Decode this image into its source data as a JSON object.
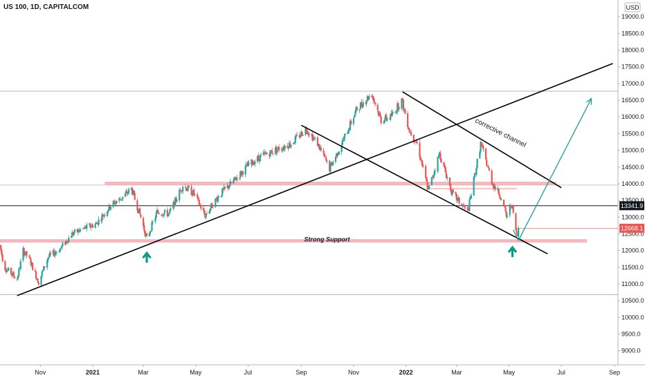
{
  "header": {
    "title": "US 100, 1D, CAPITALCOM",
    "currency": "USD"
  },
  "colors": {
    "up": "#26a69a",
    "down": "#ef5350",
    "zone": "#f7a9b1",
    "trendline": "#000000",
    "arrow_up": "#089981",
    "projection": "#26a69a"
  },
  "chart_data": {
    "type": "candlestick",
    "title": "US 100, 1D, CAPITALCOM",
    "y_axis": {
      "ylim": [
        8580,
        19500
      ],
      "ticks": [
        9000,
        9500,
        10000,
        10500,
        11000,
        11500,
        12000,
        12500,
        13000,
        13500,
        14000,
        14500,
        15000,
        15500,
        16000,
        16500,
        17000,
        17500,
        18000,
        18500,
        19000
      ],
      "tick_labels": [
        "9000.0",
        "9500.0",
        "10000.0",
        "10500.0",
        "11000.0",
        "11500.0",
        "12000.0",
        "12500.0",
        "13000.0",
        "13500.0",
        "14000.0",
        "14500.0",
        "15000.0",
        "15500.0",
        "16000.0",
        "16500.0",
        "17000.0",
        "17500.0",
        "18000.0",
        "18500.0",
        "19000.0"
      ],
      "scale": "linear",
      "side": "right"
    },
    "x_axis": {
      "xlim": [
        "2020-09-15",
        "2022-09-05"
      ],
      "ticks": [
        {
          "date": "2020-11-01",
          "label": "Nov",
          "bold": false
        },
        {
          "date": "2021-01-01",
          "label": "2021",
          "bold": true
        },
        {
          "date": "2021-03-01",
          "label": "Mar",
          "bold": false
        },
        {
          "date": "2021-05-01",
          "label": "May",
          "bold": false
        },
        {
          "date": "2021-07-01",
          "label": "Jul",
          "bold": false
        },
        {
          "date": "2021-09-01",
          "label": "Sep",
          "bold": false
        },
        {
          "date": "2021-11-01",
          "label": "Nov",
          "bold": false
        },
        {
          "date": "2022-01-01",
          "label": "2022",
          "bold": true
        },
        {
          "date": "2022-03-01",
          "label": "Mar",
          "bold": false
        },
        {
          "date": "2022-05-01",
          "label": "May",
          "bold": false
        },
        {
          "date": "2022-07-01",
          "label": "Jul",
          "bold": false
        },
        {
          "date": "2022-09-01",
          "label": "Sep",
          "bold": false
        }
      ]
    },
    "grid": false,
    "price_anchors": [
      [
        "2020-09-15",
        12150
      ],
      [
        "2020-09-20",
        11500
      ],
      [
        "2020-10-05",
        11150
      ],
      [
        "2020-10-12",
        12000
      ],
      [
        "2020-10-20",
        11700
      ],
      [
        "2020-10-30",
        11050
      ],
      [
        "2020-11-10",
        11800
      ],
      [
        "2020-11-24",
        12050
      ],
      [
        "2020-12-08",
        12500
      ],
      [
        "2020-12-21",
        12650
      ],
      [
        "2021-01-05",
        12800
      ],
      [
        "2021-01-22",
        13350
      ],
      [
        "2021-02-05",
        13600
      ],
      [
        "2021-02-15",
        13850
      ],
      [
        "2021-02-26",
        13000
      ],
      [
        "2021-03-05",
        12350
      ],
      [
        "2021-03-17",
        13150
      ],
      [
        "2021-03-31",
        13100
      ],
      [
        "2021-04-16",
        13950
      ],
      [
        "2021-04-29",
        13700
      ],
      [
        "2021-05-12",
        13050
      ],
      [
        "2021-05-28",
        13650
      ],
      [
        "2021-06-15",
        14100
      ],
      [
        "2021-07-01",
        14550
      ],
      [
        "2021-07-15",
        14800
      ],
      [
        "2021-08-01",
        15000
      ],
      [
        "2021-08-20",
        15200
      ],
      [
        "2021-09-07",
        15650
      ],
      [
        "2021-09-20",
        15200
      ],
      [
        "2021-10-04",
        14450
      ],
      [
        "2021-10-20",
        15300
      ],
      [
        "2021-11-05",
        16250
      ],
      [
        "2021-11-22",
        16700
      ],
      [
        "2021-12-03",
        15900
      ],
      [
        "2021-12-14",
        16000
      ],
      [
        "2021-12-27",
        16500
      ],
      [
        "2022-01-05",
        15600
      ],
      [
        "2022-01-14",
        15200
      ],
      [
        "2022-01-27",
        13800
      ],
      [
        "2022-02-09",
        14900
      ],
      [
        "2022-02-24",
        13700
      ],
      [
        "2022-03-14",
        13150
      ],
      [
        "2022-03-29",
        15200
      ],
      [
        "2022-04-12",
        14000
      ],
      [
        "2022-04-22",
        13600
      ],
      [
        "2022-04-28",
        13000
      ],
      [
        "2022-05-04",
        13400
      ],
      [
        "2022-05-10",
        12450
      ],
      [
        "2022-05-12",
        12430
      ]
    ],
    "last_price": 12668.1,
    "annotations": {
      "reference_price": 13341.9,
      "reference_price_label": "13341.9",
      "last_price_label": "12668.1",
      "support_zone": {
        "from": "2020-09-15",
        "to": "2022-07-31",
        "low": 12240,
        "high": 12340,
        "label": "Strong Support"
      },
      "resistance_zone": {
        "from": "2021-01-15",
        "to": "2022-06-25",
        "low": 13960,
        "high": 14060
      },
      "channel_label": "corrective channel",
      "trendlines": [
        {
          "name": "rising-trendline",
          "from": [
            "2020-10-05",
            10650
          ],
          "to": [
            "2022-08-30",
            17600
          ]
        },
        {
          "name": "channel-lower-line",
          "from": [
            "2021-09-01",
            15750
          ],
          "to": [
            "2022-06-15",
            11900
          ]
        },
        {
          "name": "channel-upper-line",
          "from": [
            "2021-12-28",
            16750
          ],
          "to": [
            "2022-07-01",
            13880
          ]
        }
      ],
      "projection_arrow": {
        "from": [
          "2022-05-12",
          12300
        ],
        "to": [
          "2022-08-05",
          16550
        ]
      },
      "up_arrows": [
        {
          "date": "2021-03-05",
          "price": 11800
        },
        {
          "date": "2022-05-05",
          "price": 11970
        }
      ]
    }
  }
}
